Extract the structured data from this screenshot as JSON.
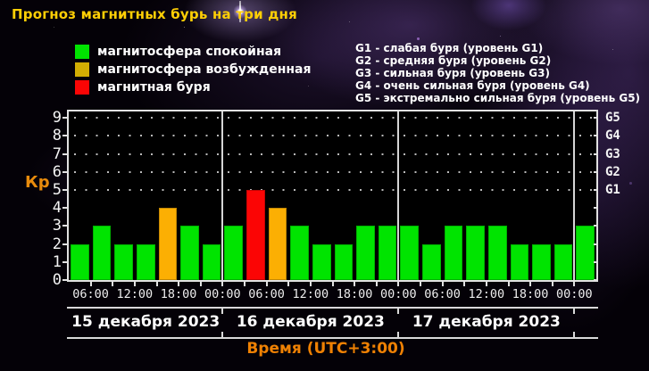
{
  "title": "Прогноз магнитных бурь на три дня",
  "legend": [
    {
      "label": "магнитосфера спокойная",
      "color": "#00e400",
      "state": "quiet"
    },
    {
      "label": "магнитосфера возбужденная",
      "color": "#d2ae03",
      "state": "excited"
    },
    {
      "label": "магнитная буря",
      "color": "#fb0505",
      "state": "storm"
    }
  ],
  "storm_levels": [
    "G1 - слабая буря (уровень G1)",
    "G2 - средняя буря (уровень G2)",
    "G3 - сильная буря (уровень G3)",
    "G4 - очень сильная буря (уровень G4)",
    "G5 - экстремально сильная буря (уровень G5)"
  ],
  "colors": {
    "title": "#ffcf05",
    "axis_text": "#f4f4f4",
    "accent_orange": "#ef8103",
    "quiet": "#00e400",
    "excited": "#fcaf03",
    "storm": "#fb0505"
  },
  "chart_data": {
    "type": "bar",
    "title": "Прогноз магнитных бурь на три дня",
    "ylabel": "Кр",
    "xlabel": "Время (UTC+3:00)",
    "ylim": [
      0,
      9
    ],
    "y_ticks": [
      0,
      1,
      2,
      3,
      4,
      5,
      6,
      7,
      8,
      9
    ],
    "right_axis": [
      {
        "value": 5,
        "label": "G1"
      },
      {
        "value": 6,
        "label": "G2"
      },
      {
        "value": 7,
        "label": "G3"
      },
      {
        "value": 8,
        "label": "G4"
      },
      {
        "value": 9,
        "label": "G5"
      }
    ],
    "dotted_grid_levels": [
      5,
      6,
      7,
      8,
      9
    ],
    "x_range_hours": [
      3,
      75
    ],
    "x_ticks": [
      {
        "hour": 6,
        "label": "06:00"
      },
      {
        "hour": 12,
        "label": "12:00"
      },
      {
        "hour": 18,
        "label": "18:00"
      },
      {
        "hour": 24,
        "label": "00:00"
      },
      {
        "hour": 30,
        "label": "06:00"
      },
      {
        "hour": 36,
        "label": "12:00"
      },
      {
        "hour": 42,
        "label": "18:00"
      },
      {
        "hour": 48,
        "label": "00:00"
      },
      {
        "hour": 54,
        "label": "06:00"
      },
      {
        "hour": 60,
        "label": "12:00"
      },
      {
        "hour": 66,
        "label": "18:00"
      },
      {
        "hour": 72,
        "label": "00:00"
      }
    ],
    "minor_tick_step_hours": 3,
    "day_dividers_hours": [
      24,
      48,
      72
    ],
    "days": [
      {
        "label": "15 декабря 2023",
        "center_hour": 13.5
      },
      {
        "label": "16 декабря 2023",
        "center_hour": 36
      },
      {
        "label": "17 декабря 2023",
        "center_hour": 60
      }
    ],
    "bars": [
      {
        "start_hour": 3,
        "kp": 2,
        "state": "quiet"
      },
      {
        "start_hour": 6,
        "kp": 3,
        "state": "quiet"
      },
      {
        "start_hour": 9,
        "kp": 2,
        "state": "quiet"
      },
      {
        "start_hour": 12,
        "kp": 2,
        "state": "quiet"
      },
      {
        "start_hour": 15,
        "kp": 4,
        "state": "excited"
      },
      {
        "start_hour": 18,
        "kp": 3,
        "state": "quiet"
      },
      {
        "start_hour": 21,
        "kp": 2,
        "state": "quiet"
      },
      {
        "start_hour": 24,
        "kp": 3,
        "state": "quiet"
      },
      {
        "start_hour": 27,
        "kp": 5,
        "state": "storm"
      },
      {
        "start_hour": 30,
        "kp": 4,
        "state": "excited"
      },
      {
        "start_hour": 33,
        "kp": 3,
        "state": "quiet"
      },
      {
        "start_hour": 36,
        "kp": 2,
        "state": "quiet"
      },
      {
        "start_hour": 39,
        "kp": 2,
        "state": "quiet"
      },
      {
        "start_hour": 42,
        "kp": 3,
        "state": "quiet"
      },
      {
        "start_hour": 45,
        "kp": 3,
        "state": "quiet"
      },
      {
        "start_hour": 48,
        "kp": 3,
        "state": "quiet"
      },
      {
        "start_hour": 51,
        "kp": 2,
        "state": "quiet"
      },
      {
        "start_hour": 54,
        "kp": 3,
        "state": "quiet"
      },
      {
        "start_hour": 57,
        "kp": 3,
        "state": "quiet"
      },
      {
        "start_hour": 60,
        "kp": 3,
        "state": "quiet"
      },
      {
        "start_hour": 63,
        "kp": 2,
        "state": "quiet"
      },
      {
        "start_hour": 66,
        "kp": 2,
        "state": "quiet"
      },
      {
        "start_hour": 69,
        "kp": 2,
        "state": "quiet"
      },
      {
        "start_hour": 72,
        "kp": 3,
        "state": "quiet"
      }
    ]
  }
}
